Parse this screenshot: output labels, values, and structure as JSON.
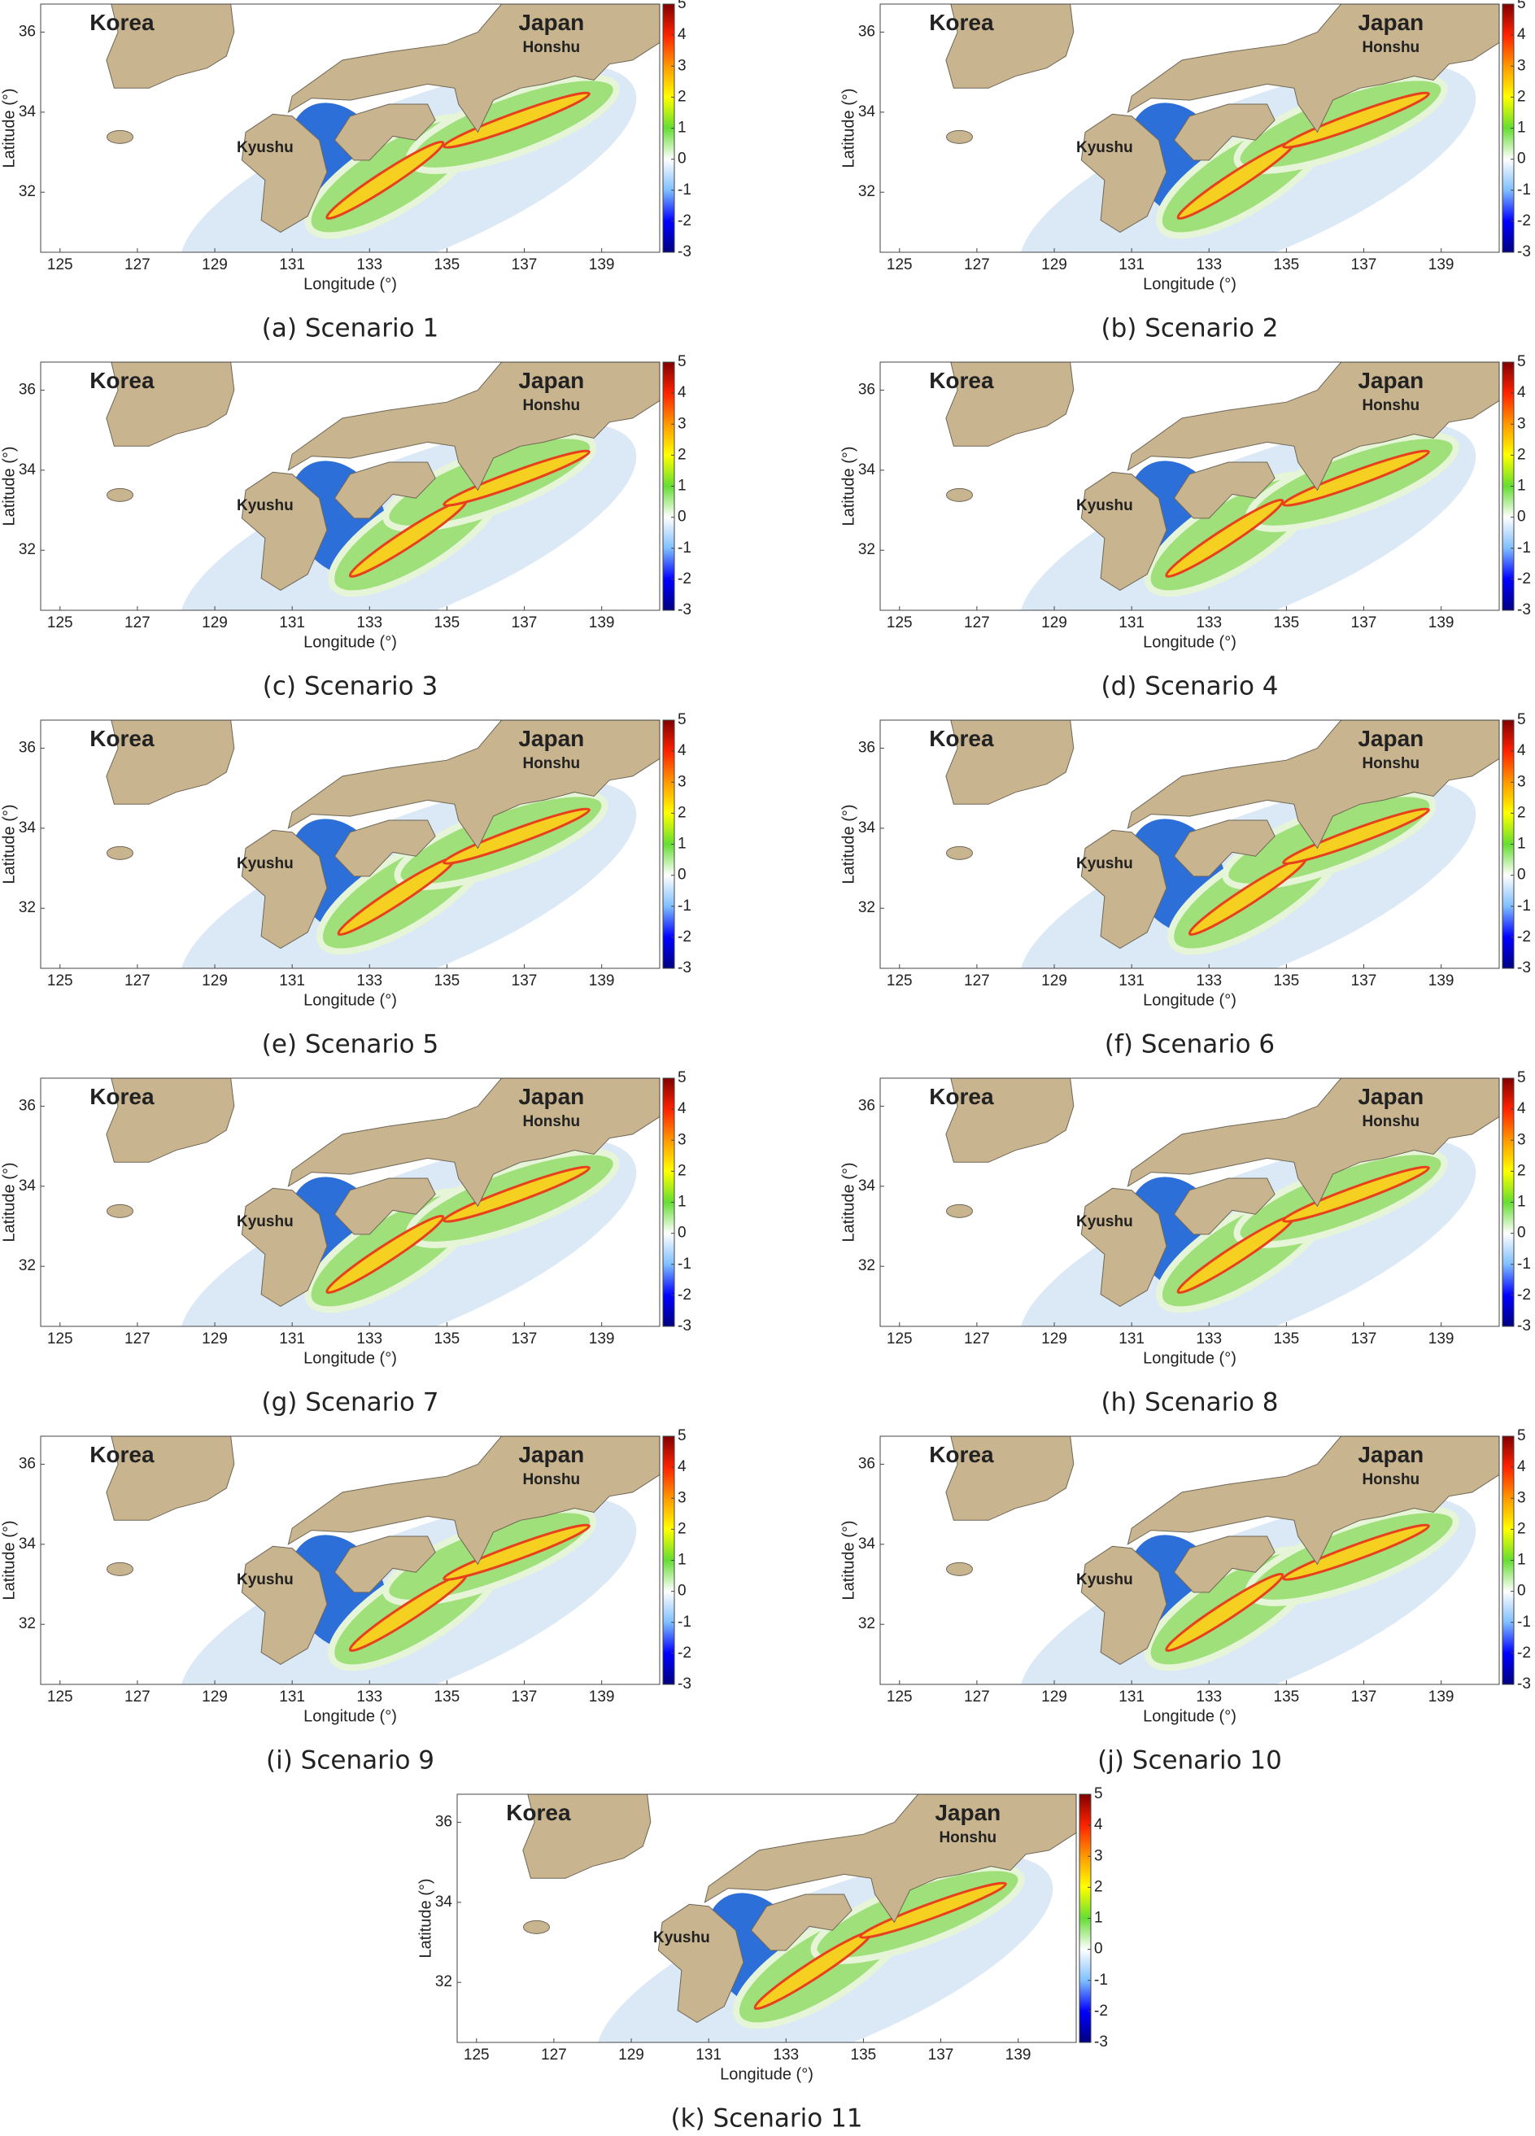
{
  "map": {
    "xlabel": "Longitude (°)",
    "ylabel": "Latitude (°)",
    "xlim": [
      124.5,
      140.5
    ],
    "ylim": [
      30.5,
      36.7
    ],
    "xticks": [
      125,
      127,
      129,
      131,
      133,
      135,
      137,
      139
    ],
    "yticks": [
      32,
      34,
      36
    ],
    "colorbar": {
      "lim": [
        -3,
        5
      ],
      "ticks": [
        -3,
        -2,
        -1,
        0,
        1,
        2,
        3,
        4,
        5
      ],
      "colors": [
        "#00007f",
        "#0000ff",
        "#7fbfff",
        "#ffffff",
        "#66dd33",
        "#ffff00",
        "#ff9900",
        "#ff2200",
        "#800000"
      ]
    },
    "place_labels": [
      {
        "text": "Korea",
        "lon": 126.6,
        "lat": 36.2,
        "size": "big"
      },
      {
        "text": "Japan",
        "lon": 137.7,
        "lat": 36.2,
        "size": "big"
      },
      {
        "text": "Honshu",
        "lon": 137.7,
        "lat": 35.6,
        "size": "small"
      },
      {
        "text": "Kyushu",
        "lon": 130.3,
        "lat": 33.1,
        "size": "small"
      }
    ]
  },
  "panels": [
    {
      "caption": "(a) Scenario 1"
    },
    {
      "caption": "(b) Scenario 2"
    },
    {
      "caption": "(c) Scenario 3"
    },
    {
      "caption": "(d) Scenario 4"
    },
    {
      "caption": "(e) Scenario 5"
    },
    {
      "caption": "(f) Scenario 6"
    },
    {
      "caption": "(g) Scenario 7"
    },
    {
      "caption": "(h) Scenario 8"
    },
    {
      "caption": "(i) Scenario 9"
    },
    {
      "caption": "(j) Scenario 10"
    },
    {
      "caption": "(k) Scenario 11"
    }
  ]
}
